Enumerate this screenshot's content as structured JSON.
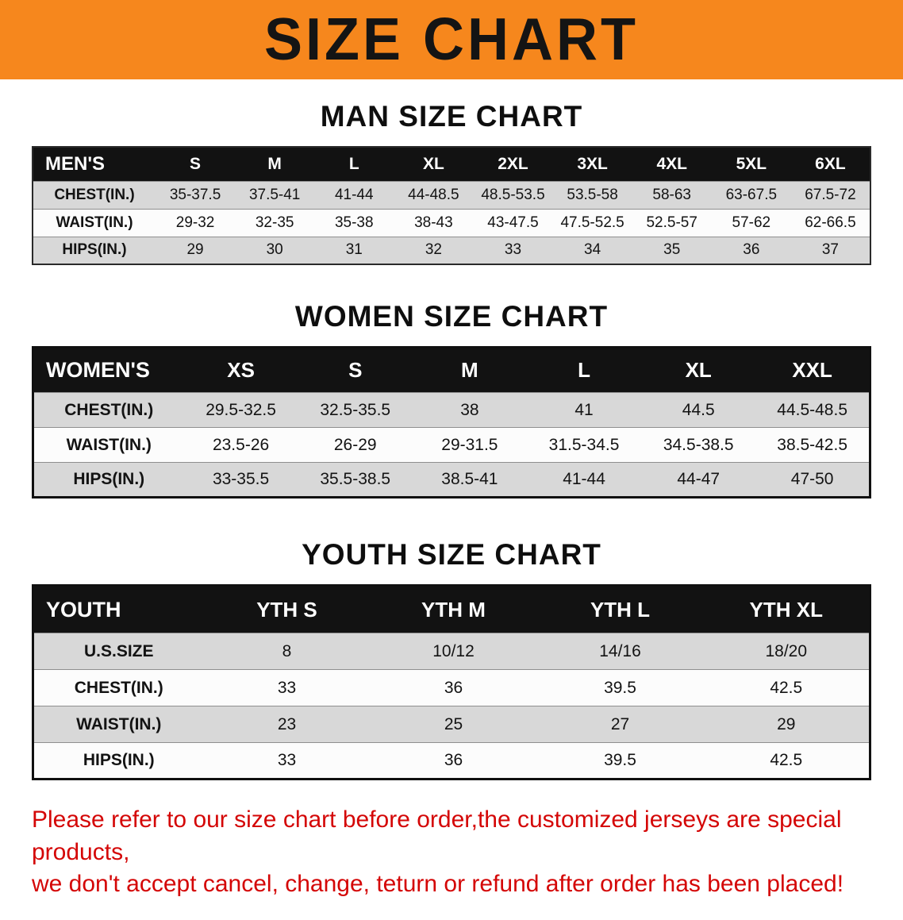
{
  "colors": {
    "banner_bg": "#F6871D",
    "title_text": "#141414",
    "table_header_bg": "#121212",
    "table_header_text": "#FFFFFF",
    "row_shaded": "#D8D8D8",
    "row_plain": "#FCFCFC",
    "disclaimer_text": "#D40606"
  },
  "banner": {
    "title": "SIZE CHART"
  },
  "men": {
    "heading": "MAN SIZE CHART",
    "table": {
      "header": [
        "MEN'S",
        "S",
        "M",
        "L",
        "XL",
        "2XL",
        "3XL",
        "4XL",
        "5XL",
        "6XL"
      ],
      "rows": [
        [
          "CHEST(IN.)",
          "35-37.5",
          "37.5-41",
          "41-44",
          "44-48.5",
          "48.5-53.5",
          "53.5-58",
          "58-63",
          "63-67.5",
          "67.5-72"
        ],
        [
          "WAIST(IN.)",
          "29-32",
          "32-35",
          "35-38",
          "38-43",
          "43-47.5",
          "47.5-52.5",
          "52.5-57",
          "57-62",
          "62-66.5"
        ],
        [
          "HIPS(IN.)",
          "29",
          "30",
          "31",
          "32",
          "33",
          "34",
          "35",
          "36",
          "37"
        ]
      ]
    }
  },
  "women": {
    "heading": "WOMEN SIZE CHART",
    "table": {
      "header": [
        "WOMEN'S",
        "XS",
        "S",
        "M",
        "L",
        "XL",
        "XXL"
      ],
      "rows": [
        [
          "CHEST(IN.)",
          "29.5-32.5",
          "32.5-35.5",
          "38",
          "41",
          "44.5",
          "44.5-48.5"
        ],
        [
          "WAIST(IN.)",
          "23.5-26",
          "26-29",
          "29-31.5",
          "31.5-34.5",
          "34.5-38.5",
          "38.5-42.5"
        ],
        [
          "HIPS(IN.)",
          "33-35.5",
          "35.5-38.5",
          "38.5-41",
          "41-44",
          "44-47",
          "47-50"
        ]
      ]
    }
  },
  "youth": {
    "heading": "YOUTH SIZE CHART",
    "table": {
      "header": [
        "YOUTH",
        "YTH S",
        "YTH M",
        "YTH L",
        "YTH XL"
      ],
      "rows": [
        [
          "U.S.SIZE",
          "8",
          "10/12",
          "14/16",
          "18/20"
        ],
        [
          "CHEST(IN.)",
          "33",
          "36",
          "39.5",
          "42.5"
        ],
        [
          "WAIST(IN.)",
          "23",
          "25",
          "27",
          "29"
        ],
        [
          "HIPS(IN.)",
          "33",
          "36",
          "39.5",
          "42.5"
        ]
      ]
    }
  },
  "disclaimer": {
    "line1": "Please refer to our size chart before order,the customized jerseys are special products,",
    "line2": "we don't accept cancel, change, teturn or refund after order has been placed!"
  }
}
